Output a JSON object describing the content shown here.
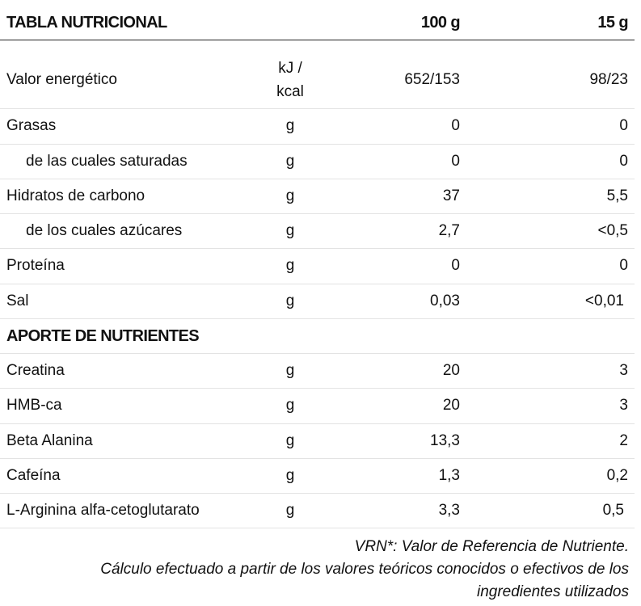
{
  "header": {
    "title": "TABLA NUTRICIONAL",
    "col_100": "100 g",
    "col_15": "15 g"
  },
  "rows": [
    {
      "name": "Valor energético",
      "unit": "kJ / kcal",
      "v100": "652/153",
      "v15": "98/23"
    },
    {
      "name": "Grasas",
      "unit": "g",
      "v100": "0",
      "v15": "0"
    },
    {
      "name": "de las cuales saturadas",
      "unit": "g",
      "v100": "0",
      "v15": "0"
    },
    {
      "name": "Hidratos de carbono",
      "unit": "g",
      "v100": "37",
      "v15": "5,5"
    },
    {
      "name": "de los cuales azúcares",
      "unit": "g",
      "v100": "2,7",
      "v15": "<0,5"
    },
    {
      "name": "Proteína",
      "unit": "g",
      "v100": "0",
      "v15": "0"
    },
    {
      "name": "Sal",
      "unit": "g",
      "v100": "0,03",
      "v15": "<0,01"
    }
  ],
  "section2": {
    "title": "APORTE DE NUTRIENTES"
  },
  "rows2": [
    {
      "name": "Creatina",
      "unit": "g",
      "v100": "20",
      "v15": "3"
    },
    {
      "name": "HMB-ca",
      "unit": "g",
      "v100": "20",
      "v15": "3"
    },
    {
      "name": "Beta Alanina",
      "unit": "g",
      "v100": "13,3",
      "v15": "2"
    },
    {
      "name": "Cafeína",
      "unit": "g",
      "v100": "1,3",
      "v15": "0,2"
    },
    {
      "name": "L-Arginina alfa-cetoglutarato",
      "unit": "g",
      "v100": "3,3",
      "v15": "0,5"
    }
  ],
  "footer": {
    "line1": "VRN*: Valor de Referencia de Nutriente.",
    "line2": "Cálculo efectuado a partir de los valores teóricos conocidos o efectivos de los",
    "line3": "ingredientes utilizados"
  }
}
